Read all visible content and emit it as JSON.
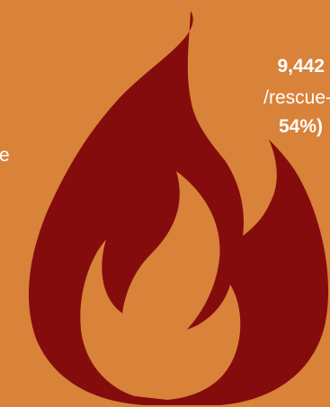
{
  "colors": {
    "background": "#D9823A",
    "flame": "#850C0C",
    "text": "#FFFFFF"
  },
  "flame": {
    "icon": "flame-icon"
  },
  "caption": {
    "line1": "9,442",
    "line2": "/rescue-",
    "line3": "54%)",
    "line4": "e"
  }
}
